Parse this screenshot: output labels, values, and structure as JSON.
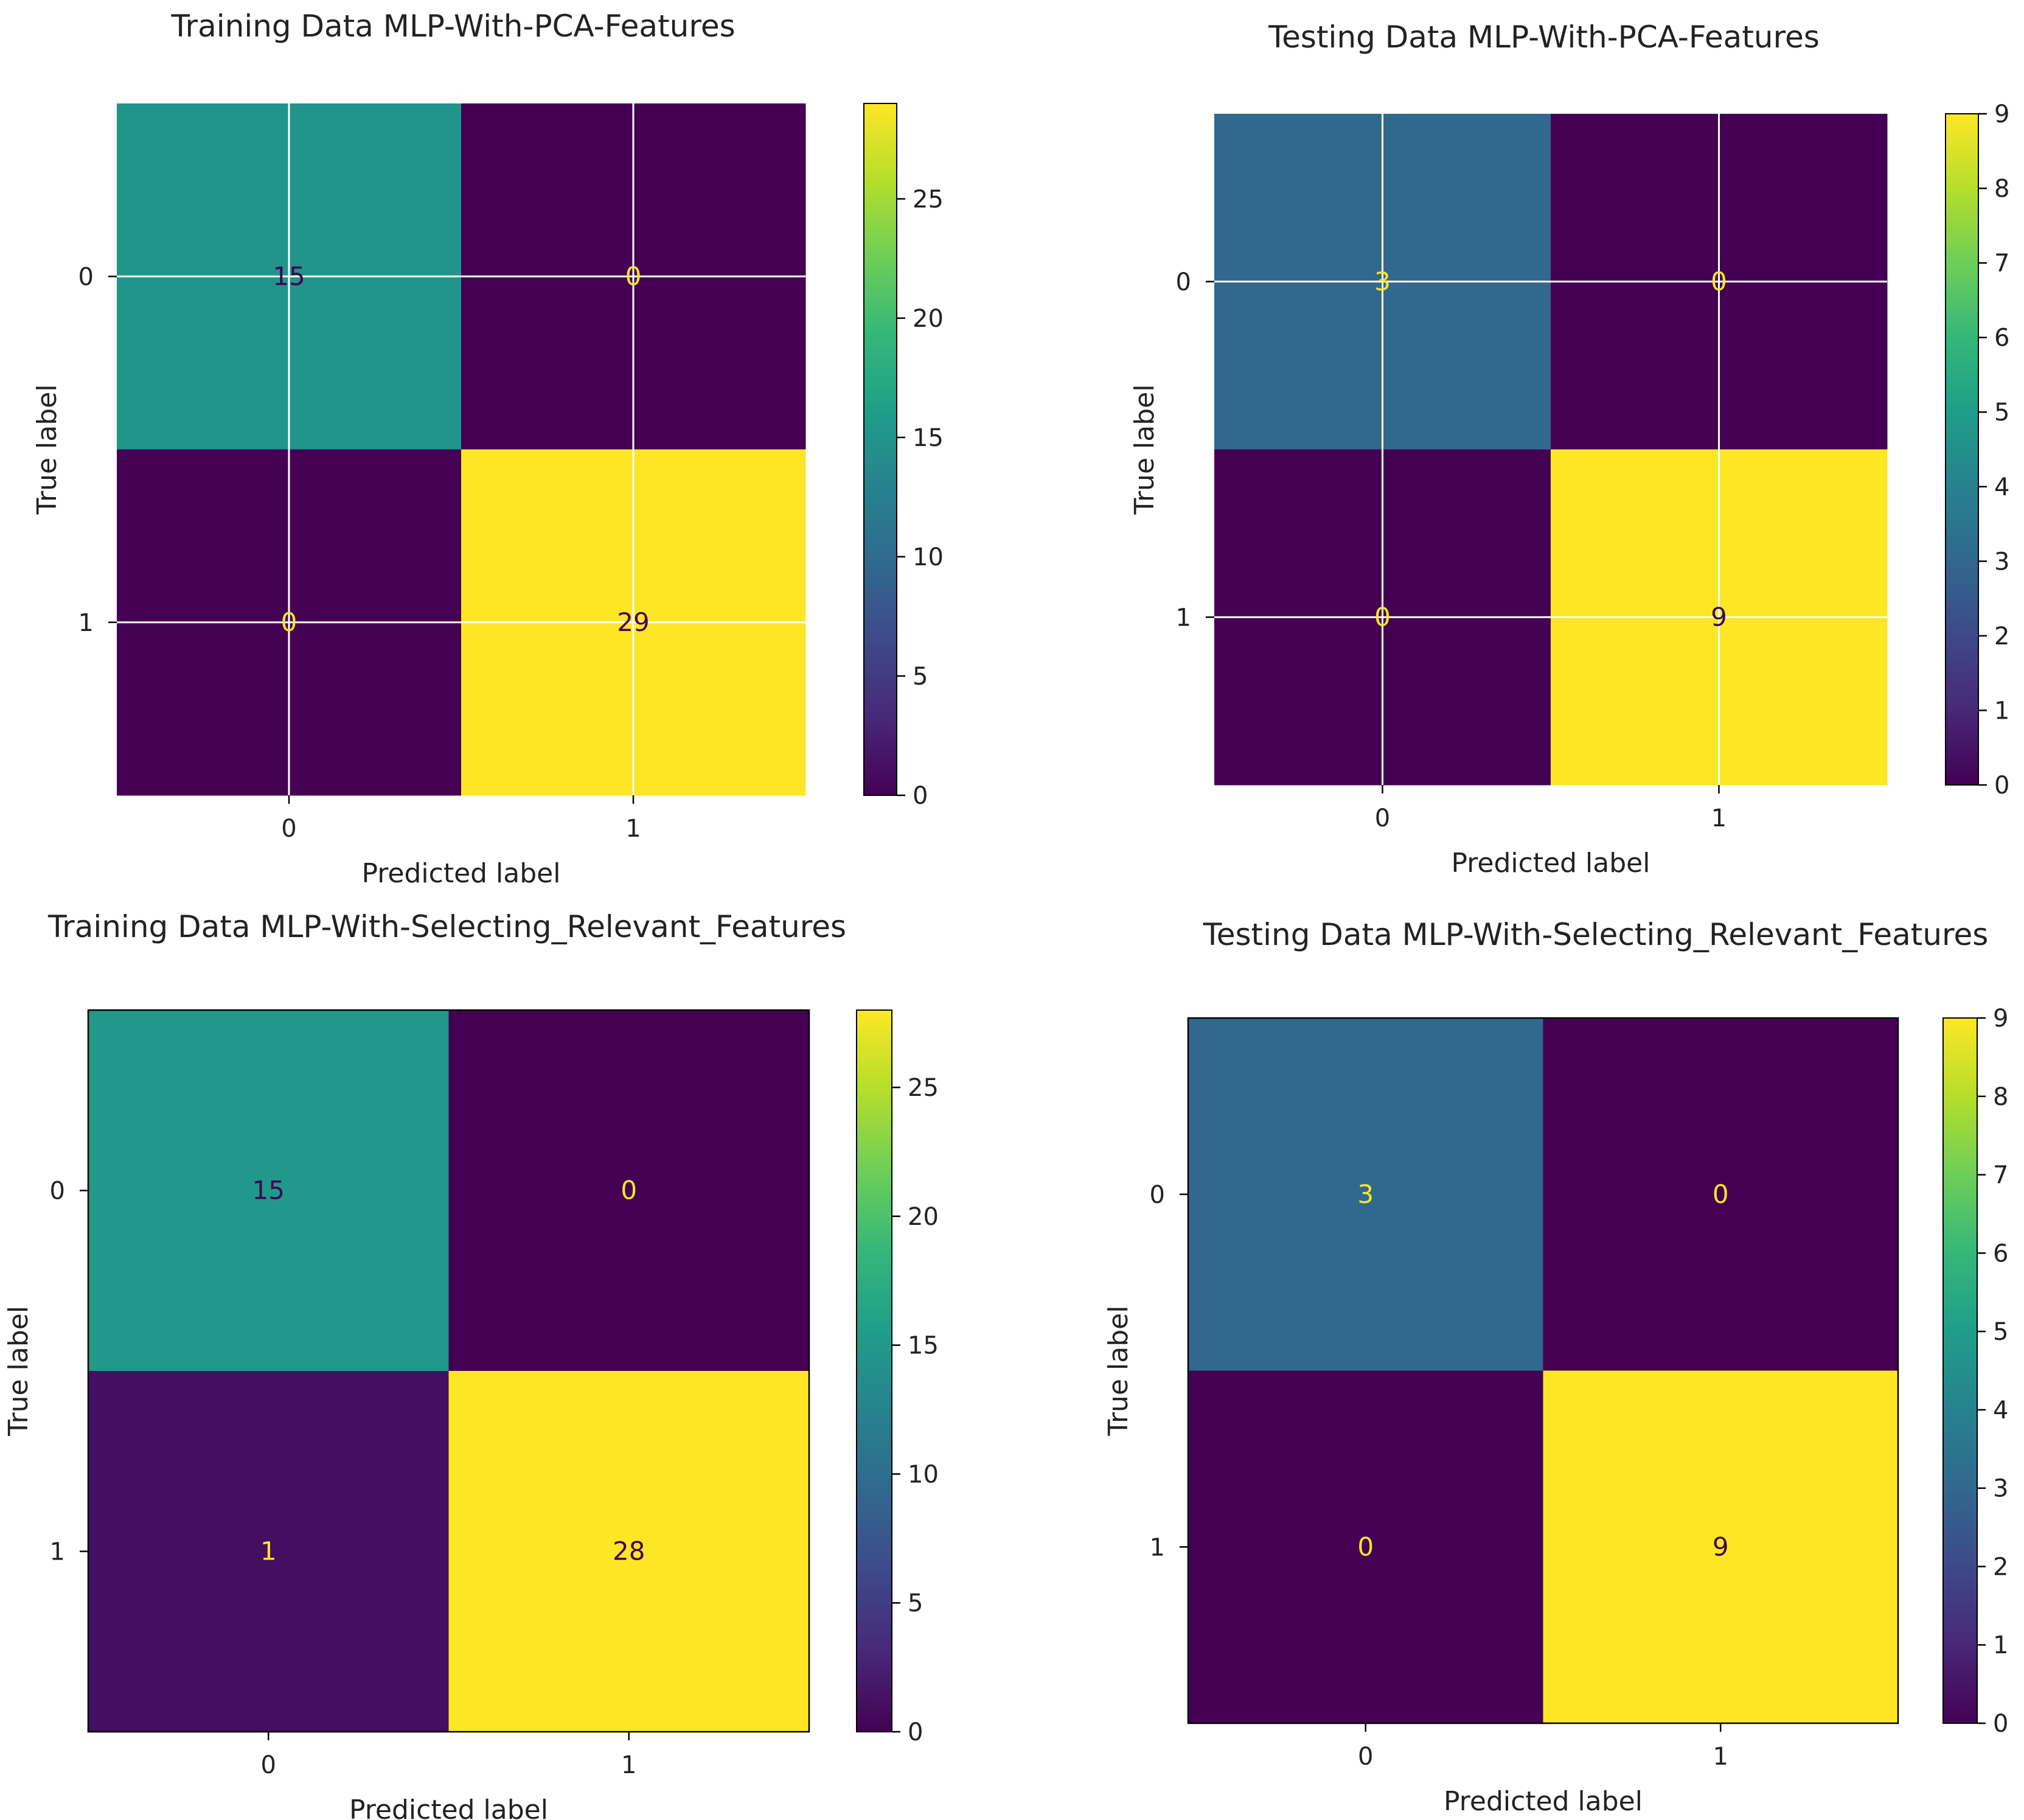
{
  "colors": {
    "viridis": [
      "#440154",
      "#482878",
      "#3e4989",
      "#31688e",
      "#26828e",
      "#1f9e89",
      "#35b779",
      "#6ece58",
      "#b5de2b",
      "#fde725"
    ],
    "dark_text": "#440154",
    "light_text": "#fde725",
    "axis": "#000000",
    "grid": "#ffffff"
  },
  "chart_data": [
    {
      "type": "heatmap",
      "name": "train-pca",
      "title": "Training Data MLP-With-PCA-Features",
      "xlabel": "Predicted label",
      "ylabel": "True label",
      "x_categories": [
        "0",
        "1"
      ],
      "y_categories": [
        "0",
        "1"
      ],
      "matrix": [
        [
          15,
          0
        ],
        [
          0,
          29
        ]
      ],
      "colorbar_range": [
        0,
        29
      ],
      "colorbar_ticks": [
        0,
        5,
        10,
        15,
        20,
        25
      ],
      "grid": true
    },
    {
      "type": "heatmap",
      "name": "test-pca",
      "title": "Testing Data MLP-With-PCA-Features",
      "xlabel": "Predicted label",
      "ylabel": "True label",
      "x_categories": [
        "0",
        "1"
      ],
      "y_categories": [
        "0",
        "1"
      ],
      "matrix": [
        [
          3,
          0
        ],
        [
          0,
          9
        ]
      ],
      "colorbar_range": [
        0,
        9
      ],
      "colorbar_ticks": [
        0,
        1,
        2,
        3,
        4,
        5,
        6,
        7,
        8,
        9
      ],
      "grid": true
    },
    {
      "type": "heatmap",
      "name": "train-relevant",
      "title": "Training Data MLP-With-Selecting_Relevant_Features",
      "xlabel": "Predicted label",
      "ylabel": "True label",
      "x_categories": [
        "0",
        "1"
      ],
      "y_categories": [
        "0",
        "1"
      ],
      "matrix": [
        [
          15,
          0
        ],
        [
          1,
          28
        ]
      ],
      "colorbar_range": [
        0,
        28
      ],
      "colorbar_ticks": [
        0,
        5,
        10,
        15,
        20,
        25
      ],
      "grid": false
    },
    {
      "type": "heatmap",
      "name": "test-relevant",
      "title": "Testing Data MLP-With-Selecting_Relevant_Features",
      "xlabel": "Predicted label",
      "ylabel": "True label",
      "x_categories": [
        "0",
        "1"
      ],
      "y_categories": [
        "0",
        "1"
      ],
      "matrix": [
        [
          3,
          0
        ],
        [
          0,
          9
        ]
      ],
      "colorbar_range": [
        0,
        9
      ],
      "colorbar_ticks": [
        0,
        1,
        2,
        3,
        4,
        5,
        6,
        7,
        8,
        9
      ],
      "grid": false
    }
  ]
}
